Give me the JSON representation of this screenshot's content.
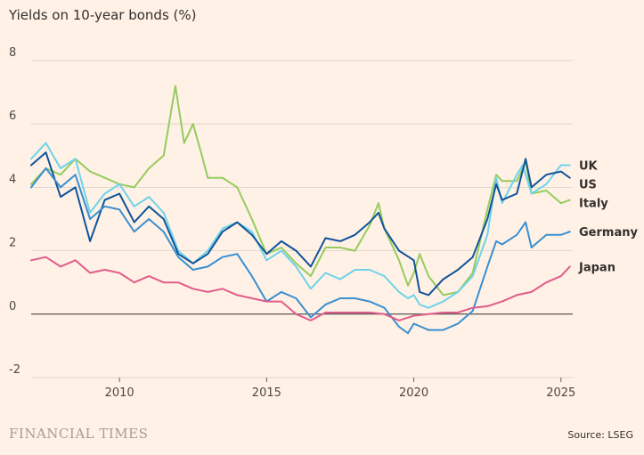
{
  "title": "Yields on 10-year bonds (%)",
  "footer": {
    "brand": "FINANCIAL TIMES",
    "source": "Source: LSEG"
  },
  "colors": {
    "background": "#fff1e5",
    "grid": "#d9cfc6",
    "zero_line": "#33302e",
    "UK": "#6fd3ea",
    "US": "#0f5499",
    "Italy": "#96cc5e",
    "Germany": "#3a8fd1",
    "Japan": "#e05d8b"
  },
  "chart_data": {
    "type": "line",
    "title": "Yields on 10-year bonds (%)",
    "xlabel": "",
    "ylabel": "",
    "xlim": [
      2007.0,
      2025.4
    ],
    "ylim": [
      -2,
      8
    ],
    "x_ticks": [
      2010,
      2015,
      2020,
      2025
    ],
    "y_ticks": [
      -2,
      0,
      2,
      4,
      6,
      8
    ],
    "grid": "horizontal",
    "legend": "end-of-line labels at right",
    "series": [
      {
        "name": "Italy",
        "points": [
          [
            2007.0,
            4.1
          ],
          [
            2007.5,
            4.6
          ],
          [
            2008.0,
            4.4
          ],
          [
            2008.5,
            4.9
          ],
          [
            2009.0,
            4.5
          ],
          [
            2009.5,
            4.3
          ],
          [
            2010.0,
            4.1
          ],
          [
            2010.5,
            4.0
          ],
          [
            2011.0,
            4.6
          ],
          [
            2011.5,
            5.0
          ],
          [
            2011.9,
            7.2
          ],
          [
            2012.2,
            5.4
          ],
          [
            2012.5,
            6.0
          ],
          [
            2012.8,
            5.0
          ],
          [
            2013.0,
            4.3
          ],
          [
            2013.5,
            4.3
          ],
          [
            2014.0,
            4.0
          ],
          [
            2014.5,
            3.0
          ],
          [
            2015.0,
            1.9
          ],
          [
            2015.5,
            2.1
          ],
          [
            2016.0,
            1.6
          ],
          [
            2016.5,
            1.2
          ],
          [
            2017.0,
            2.1
          ],
          [
            2017.5,
            2.1
          ],
          [
            2018.0,
            2.0
          ],
          [
            2018.5,
            2.8
          ],
          [
            2018.8,
            3.5
          ],
          [
            2019.0,
            2.7
          ],
          [
            2019.5,
            1.7
          ],
          [
            2019.8,
            0.9
          ],
          [
            2020.0,
            1.3
          ],
          [
            2020.2,
            1.9
          ],
          [
            2020.5,
            1.2
          ],
          [
            2021.0,
            0.6
          ],
          [
            2021.5,
            0.7
          ],
          [
            2022.0,
            1.3
          ],
          [
            2022.5,
            3.3
          ],
          [
            2022.8,
            4.4
          ],
          [
            2023.0,
            4.2
          ],
          [
            2023.5,
            4.2
          ],
          [
            2023.8,
            4.8
          ],
          [
            2024.0,
            3.8
          ],
          [
            2024.5,
            3.9
          ],
          [
            2025.0,
            3.5
          ],
          [
            2025.3,
            3.6
          ]
        ]
      },
      {
        "name": "UK",
        "points": [
          [
            2007.0,
            4.9
          ],
          [
            2007.5,
            5.4
          ],
          [
            2008.0,
            4.6
          ],
          [
            2008.5,
            4.9
          ],
          [
            2009.0,
            3.2
          ],
          [
            2009.5,
            3.8
          ],
          [
            2010.0,
            4.1
          ],
          [
            2010.5,
            3.4
          ],
          [
            2011.0,
            3.7
          ],
          [
            2011.5,
            3.2
          ],
          [
            2012.0,
            2.0
          ],
          [
            2012.5,
            1.6
          ],
          [
            2013.0,
            2.0
          ],
          [
            2013.5,
            2.7
          ],
          [
            2014.0,
            2.9
          ],
          [
            2014.5,
            2.6
          ],
          [
            2015.0,
            1.7
          ],
          [
            2015.5,
            2.0
          ],
          [
            2016.0,
            1.5
          ],
          [
            2016.5,
            0.8
          ],
          [
            2017.0,
            1.3
          ],
          [
            2017.5,
            1.1
          ],
          [
            2018.0,
            1.4
          ],
          [
            2018.5,
            1.4
          ],
          [
            2019.0,
            1.2
          ],
          [
            2019.5,
            0.7
          ],
          [
            2019.8,
            0.5
          ],
          [
            2020.0,
            0.6
          ],
          [
            2020.2,
            0.3
          ],
          [
            2020.5,
            0.2
          ],
          [
            2021.0,
            0.4
          ],
          [
            2021.5,
            0.7
          ],
          [
            2022.0,
            1.2
          ],
          [
            2022.5,
            2.5
          ],
          [
            2022.8,
            4.3
          ],
          [
            2023.0,
            3.5
          ],
          [
            2023.5,
            4.4
          ],
          [
            2023.7,
            4.7
          ],
          [
            2024.0,
            3.8
          ],
          [
            2024.5,
            4.1
          ],
          [
            2025.0,
            4.7
          ],
          [
            2025.3,
            4.7
          ]
        ]
      },
      {
        "name": "US",
        "points": [
          [
            2007.0,
            4.7
          ],
          [
            2007.5,
            5.1
          ],
          [
            2008.0,
            3.7
          ],
          [
            2008.5,
            4.0
          ],
          [
            2009.0,
            2.3
          ],
          [
            2009.5,
            3.6
          ],
          [
            2010.0,
            3.8
          ],
          [
            2010.5,
            2.9
          ],
          [
            2011.0,
            3.4
          ],
          [
            2011.5,
            3.0
          ],
          [
            2012.0,
            1.9
          ],
          [
            2012.5,
            1.6
          ],
          [
            2013.0,
            1.9
          ],
          [
            2013.5,
            2.6
          ],
          [
            2014.0,
            2.9
          ],
          [
            2014.5,
            2.5
          ],
          [
            2015.0,
            1.9
          ],
          [
            2015.5,
            2.3
          ],
          [
            2016.0,
            2.0
          ],
          [
            2016.5,
            1.5
          ],
          [
            2017.0,
            2.4
          ],
          [
            2017.5,
            2.3
          ],
          [
            2018.0,
            2.5
          ],
          [
            2018.5,
            2.9
          ],
          [
            2018.8,
            3.2
          ],
          [
            2019.0,
            2.7
          ],
          [
            2019.5,
            2.0
          ],
          [
            2020.0,
            1.7
          ],
          [
            2020.2,
            0.7
          ],
          [
            2020.5,
            0.6
          ],
          [
            2021.0,
            1.1
          ],
          [
            2021.5,
            1.4
          ],
          [
            2022.0,
            1.8
          ],
          [
            2022.5,
            3.0
          ],
          [
            2022.8,
            4.1
          ],
          [
            2023.0,
            3.6
          ],
          [
            2023.5,
            3.8
          ],
          [
            2023.8,
            4.9
          ],
          [
            2024.0,
            4.0
          ],
          [
            2024.5,
            4.4
          ],
          [
            2025.0,
            4.5
          ],
          [
            2025.3,
            4.3
          ]
        ]
      },
      {
        "name": "Germany",
        "points": [
          [
            2007.0,
            4.0
          ],
          [
            2007.5,
            4.6
          ],
          [
            2008.0,
            4.0
          ],
          [
            2008.5,
            4.4
          ],
          [
            2009.0,
            3.0
          ],
          [
            2009.5,
            3.4
          ],
          [
            2010.0,
            3.3
          ],
          [
            2010.5,
            2.6
          ],
          [
            2011.0,
            3.0
          ],
          [
            2011.5,
            2.6
          ],
          [
            2012.0,
            1.8
          ],
          [
            2012.5,
            1.4
          ],
          [
            2013.0,
            1.5
          ],
          [
            2013.5,
            1.8
          ],
          [
            2014.0,
            1.9
          ],
          [
            2014.5,
            1.2
          ],
          [
            2015.0,
            0.4
          ],
          [
            2015.5,
            0.7
          ],
          [
            2016.0,
            0.5
          ],
          [
            2016.5,
            -0.1
          ],
          [
            2017.0,
            0.3
          ],
          [
            2017.5,
            0.5
          ],
          [
            2018.0,
            0.5
          ],
          [
            2018.5,
            0.4
          ],
          [
            2019.0,
            0.2
          ],
          [
            2019.5,
            -0.4
          ],
          [
            2019.8,
            -0.6
          ],
          [
            2020.0,
            -0.3
          ],
          [
            2020.5,
            -0.5
          ],
          [
            2021.0,
            -0.5
          ],
          [
            2021.5,
            -0.3
          ],
          [
            2022.0,
            0.1
          ],
          [
            2022.5,
            1.5
          ],
          [
            2022.8,
            2.3
          ],
          [
            2023.0,
            2.2
          ],
          [
            2023.5,
            2.5
          ],
          [
            2023.8,
            2.9
          ],
          [
            2024.0,
            2.1
          ],
          [
            2024.5,
            2.5
          ],
          [
            2025.0,
            2.5
          ],
          [
            2025.3,
            2.6
          ]
        ]
      },
      {
        "name": "Japan",
        "points": [
          [
            2007.0,
            1.7
          ],
          [
            2007.5,
            1.8
          ],
          [
            2008.0,
            1.5
          ],
          [
            2008.5,
            1.7
          ],
          [
            2009.0,
            1.3
          ],
          [
            2009.5,
            1.4
          ],
          [
            2010.0,
            1.3
          ],
          [
            2010.5,
            1.0
          ],
          [
            2011.0,
            1.2
          ],
          [
            2011.5,
            1.0
          ],
          [
            2012.0,
            1.0
          ],
          [
            2012.5,
            0.8
          ],
          [
            2013.0,
            0.7
          ],
          [
            2013.5,
            0.8
          ],
          [
            2014.0,
            0.6
          ],
          [
            2014.5,
            0.5
          ],
          [
            2015.0,
            0.4
          ],
          [
            2015.5,
            0.4
          ],
          [
            2016.0,
            0.0
          ],
          [
            2016.5,
            -0.2
          ],
          [
            2017.0,
            0.05
          ],
          [
            2017.5,
            0.05
          ],
          [
            2018.0,
            0.05
          ],
          [
            2018.5,
            0.05
          ],
          [
            2019.0,
            0.0
          ],
          [
            2019.5,
            -0.2
          ],
          [
            2020.0,
            -0.05
          ],
          [
            2020.5,
            0.0
          ],
          [
            2021.0,
            0.05
          ],
          [
            2021.5,
            0.05
          ],
          [
            2022.0,
            0.2
          ],
          [
            2022.5,
            0.25
          ],
          [
            2023.0,
            0.4
          ],
          [
            2023.5,
            0.6
          ],
          [
            2024.0,
            0.7
          ],
          [
            2024.5,
            1.0
          ],
          [
            2025.0,
            1.2
          ],
          [
            2025.3,
            1.5
          ]
        ]
      }
    ],
    "labels": [
      {
        "series": "UK",
        "text": "UK"
      },
      {
        "series": "US",
        "text": "US"
      },
      {
        "series": "Italy",
        "text": "Italy"
      },
      {
        "series": "Germany",
        "text": "Germany"
      },
      {
        "series": "Japan",
        "text": "Japan"
      }
    ]
  }
}
